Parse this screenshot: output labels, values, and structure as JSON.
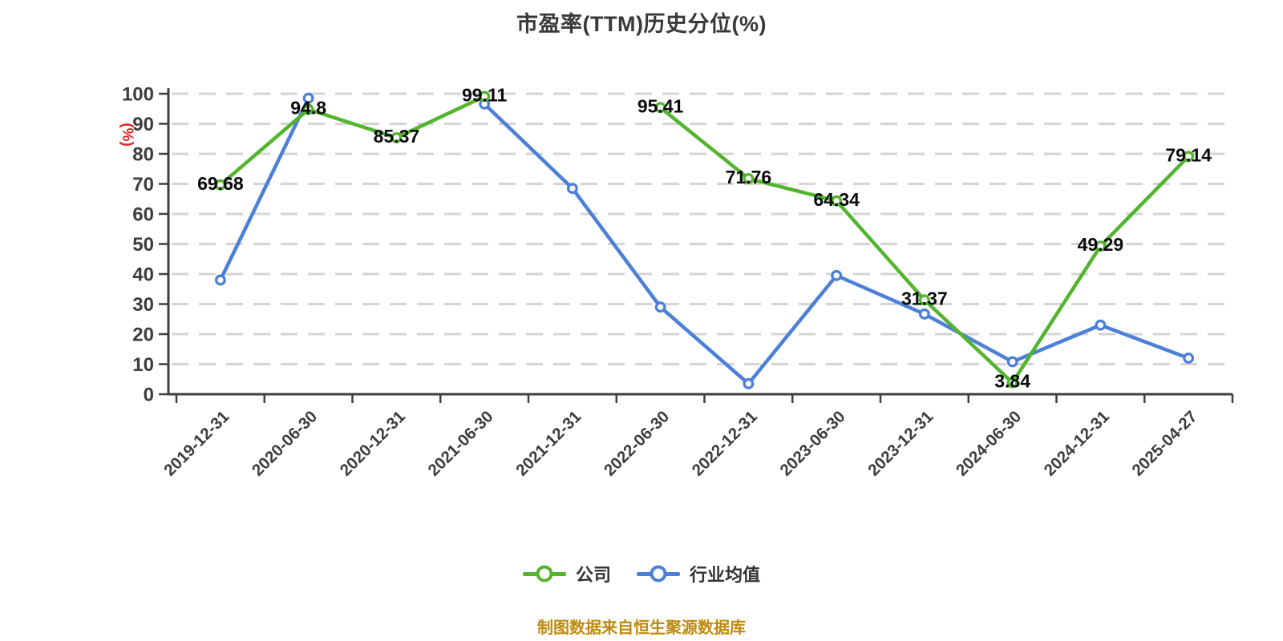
{
  "footer": {
    "source_note": "制图数据来自恒生聚源数据库"
  },
  "chart_data": {
    "type": "line",
    "title": "市盈率(TTM)历史分位(%)",
    "xlabel": "",
    "ylabel": "(%)",
    "ylim": [
      0,
      100
    ],
    "y_ticks": [
      0,
      10,
      20,
      30,
      40,
      50,
      60,
      70,
      80,
      90,
      100
    ],
    "grid": "horizontal-dashed",
    "legend_position": "bottom-center",
    "categories": [
      "2019-12-31",
      "2020-06-30",
      "2020-12-31",
      "2021-06-30",
      "2021-12-31",
      "2022-06-30",
      "2022-12-31",
      "2023-06-30",
      "2023-12-31",
      "2024-06-30",
      "2024-12-31",
      "2025-04-27"
    ],
    "series": [
      {
        "name": "公司",
        "color": "#53b42d",
        "point_labels_visible": true,
        "values": [
          69.68,
          94.8,
          85.37,
          99.11,
          null,
          95.41,
          71.76,
          64.34,
          31.37,
          3.84,
          49.29,
          79.14
        ]
      },
      {
        "name": "行业均值",
        "color": "#4c80d8",
        "point_labels_visible": false,
        "values": [
          38.0,
          98.5,
          null,
          96.6,
          68.5,
          29.0,
          3.5,
          39.5,
          26.7,
          10.8,
          23.0,
          12.0
        ]
      }
    ],
    "colors": {
      "title": "#393939",
      "axis": "#3f3f3f",
      "grid": "#d4d4d4",
      "tick_label": "#3c3c3c",
      "data_label": "#0a0a0a",
      "ylabel": "#e02222",
      "source_note": "#bc8a10"
    }
  }
}
